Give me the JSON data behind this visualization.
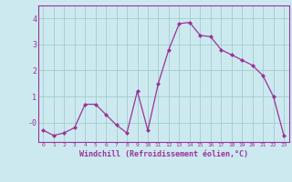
{
  "x": [
    0,
    1,
    2,
    3,
    4,
    5,
    6,
    7,
    8,
    9,
    10,
    11,
    12,
    13,
    14,
    15,
    16,
    17,
    18,
    19,
    20,
    21,
    22,
    23
  ],
  "y": [
    -0.3,
    -0.5,
    -0.4,
    -0.2,
    0.7,
    0.7,
    0.3,
    -0.1,
    -0.4,
    1.2,
    -0.3,
    1.5,
    2.8,
    3.8,
    3.85,
    3.35,
    3.3,
    2.8,
    2.6,
    2.4,
    2.2,
    1.8,
    1.0,
    -0.5
  ],
  "line_color": "#993399",
  "marker": "D",
  "marker_size": 2.0,
  "xlim": [
    -0.5,
    23.5
  ],
  "ylim": [
    -0.75,
    4.5
  ],
  "yticks": [
    0,
    1,
    2,
    3,
    4
  ],
  "ytick_labels": [
    "-0",
    "1",
    "2",
    "3",
    "4"
  ],
  "xticks": [
    0,
    1,
    2,
    3,
    4,
    5,
    6,
    7,
    8,
    9,
    10,
    11,
    12,
    13,
    14,
    15,
    16,
    17,
    18,
    19,
    20,
    21,
    22,
    23
  ],
  "xlabel": "Windchill (Refroidissement éolien,°C)",
  "background_color": "#cde9f0",
  "grid_color": "#9ecfca",
  "title": ""
}
